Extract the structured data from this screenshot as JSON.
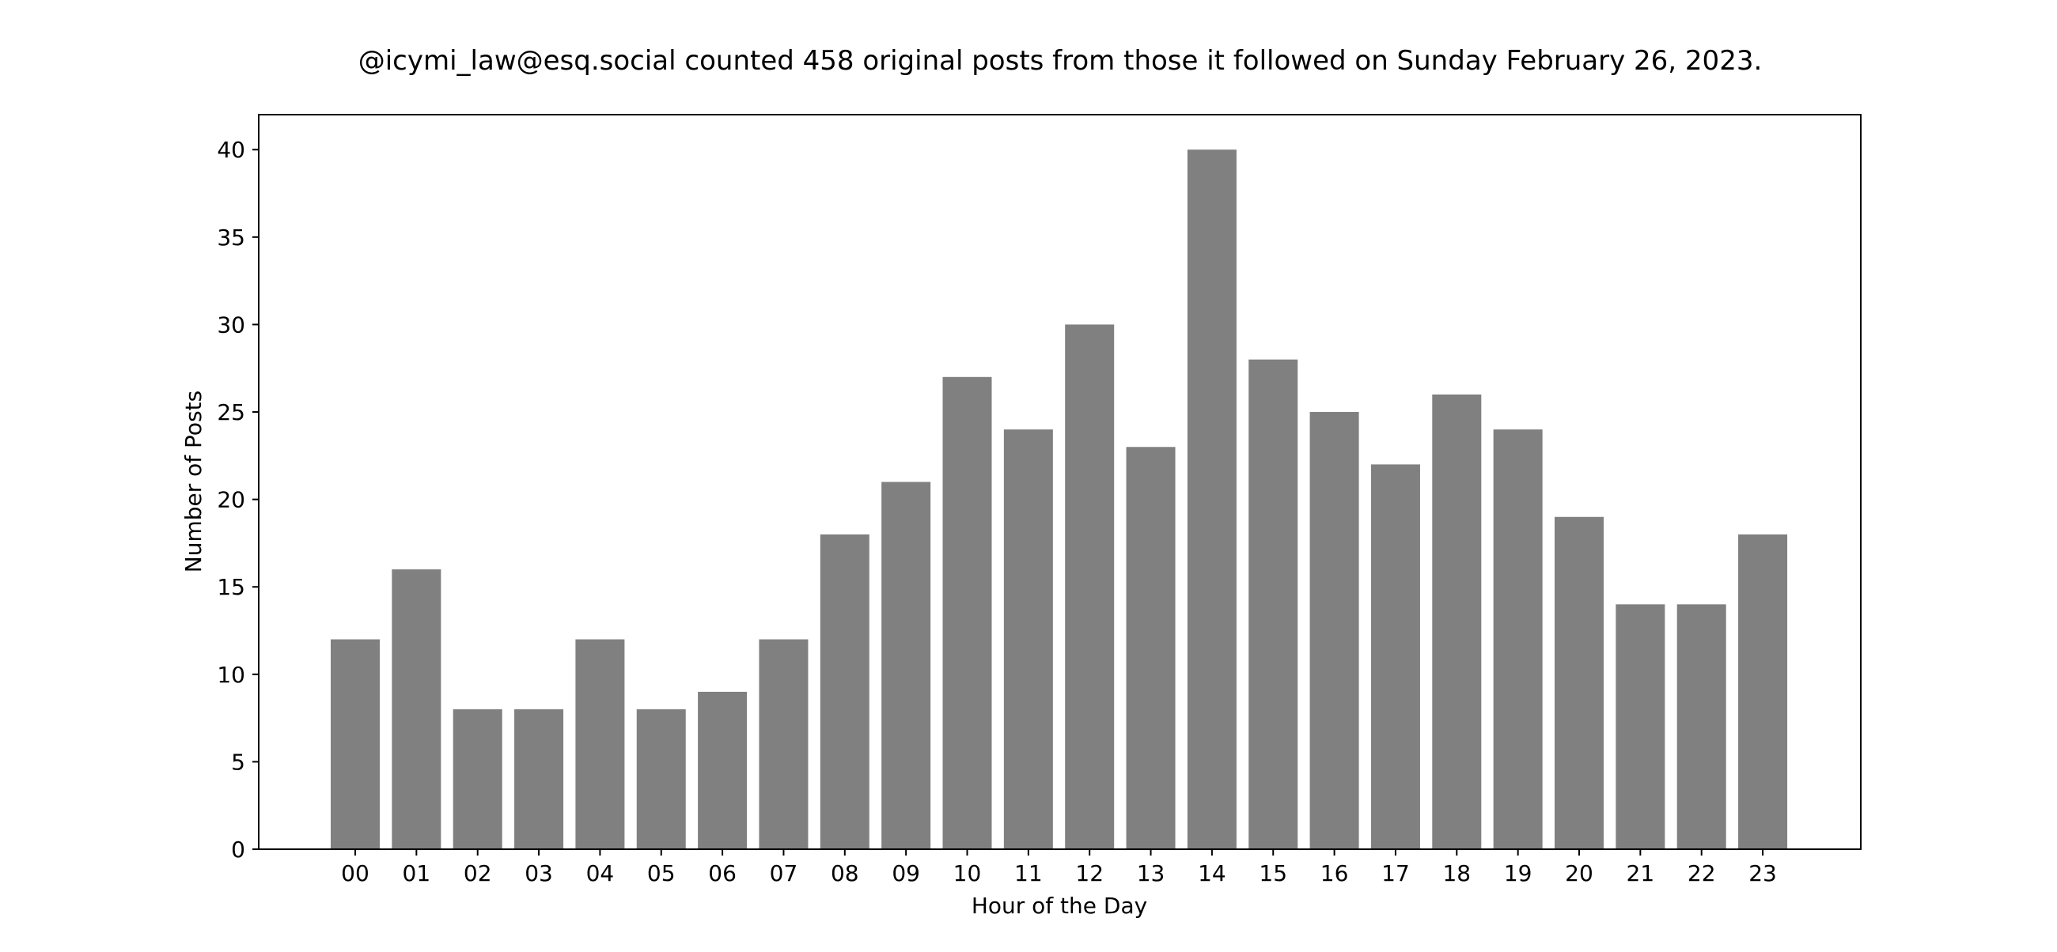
{
  "chart_data": {
    "type": "bar",
    "title": "@icymi_law@esq.social counted 458 original posts from those it followed on Sunday February 26, 2023.",
    "xlabel": "Hour of the Day",
    "ylabel": "Number of Posts",
    "categories": [
      "00",
      "01",
      "02",
      "03",
      "04",
      "05",
      "06",
      "07",
      "08",
      "09",
      "10",
      "11",
      "12",
      "13",
      "14",
      "15",
      "16",
      "17",
      "18",
      "19",
      "20",
      "21",
      "22",
      "23"
    ],
    "values": [
      12,
      16,
      8,
      8,
      12,
      8,
      9,
      12,
      18,
      21,
      27,
      24,
      30,
      23,
      40,
      28,
      25,
      22,
      26,
      24,
      19,
      14,
      14,
      18
    ],
    "ylim": [
      0,
      42
    ],
    "yticks": [
      0,
      5,
      10,
      15,
      20,
      25,
      30,
      35,
      40
    ],
    "bar_color": "#808080",
    "grid": false,
    "legend": "none"
  }
}
